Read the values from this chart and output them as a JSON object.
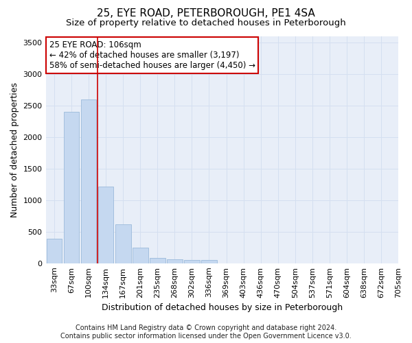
{
  "title": "25, EYE ROAD, PETERBOROUGH, PE1 4SA",
  "subtitle": "Size of property relative to detached houses in Peterborough",
  "xlabel": "Distribution of detached houses by size in Peterborough",
  "ylabel": "Number of detached properties",
  "footer_line1": "Contains HM Land Registry data © Crown copyright and database right 2024.",
  "footer_line2": "Contains public sector information licensed under the Open Government Licence v3.0.",
  "bins": [
    "33sqm",
    "67sqm",
    "100sqm",
    "134sqm",
    "167sqm",
    "201sqm",
    "235sqm",
    "268sqm",
    "302sqm",
    "336sqm",
    "369sqm",
    "403sqm",
    "436sqm",
    "470sqm",
    "504sqm",
    "537sqm",
    "571sqm",
    "604sqm",
    "638sqm",
    "672sqm",
    "705sqm"
  ],
  "values": [
    390,
    2400,
    2600,
    1220,
    620,
    250,
    90,
    60,
    55,
    50,
    0,
    0,
    0,
    0,
    0,
    0,
    0,
    0,
    0,
    0
  ],
  "bar_color": "#c5d8f0",
  "bar_edge_color": "#9bbada",
  "grid_color": "#d4dff0",
  "background_color": "#e8eef8",
  "red_line_x": 2.5,
  "annotation_line1": "25 EYE ROAD: 106sqm",
  "annotation_line2": "← 42% of detached houses are smaller (3,197)",
  "annotation_line3": "58% of semi-detached houses are larger (4,450) →",
  "ylim": [
    0,
    3600
  ],
  "yticks": [
    0,
    500,
    1000,
    1500,
    2000,
    2500,
    3000,
    3500
  ],
  "title_fontsize": 11,
  "subtitle_fontsize": 9.5,
  "axis_label_fontsize": 9,
  "tick_fontsize": 8,
  "footer_fontsize": 7,
  "annot_fontsize": 8.5
}
